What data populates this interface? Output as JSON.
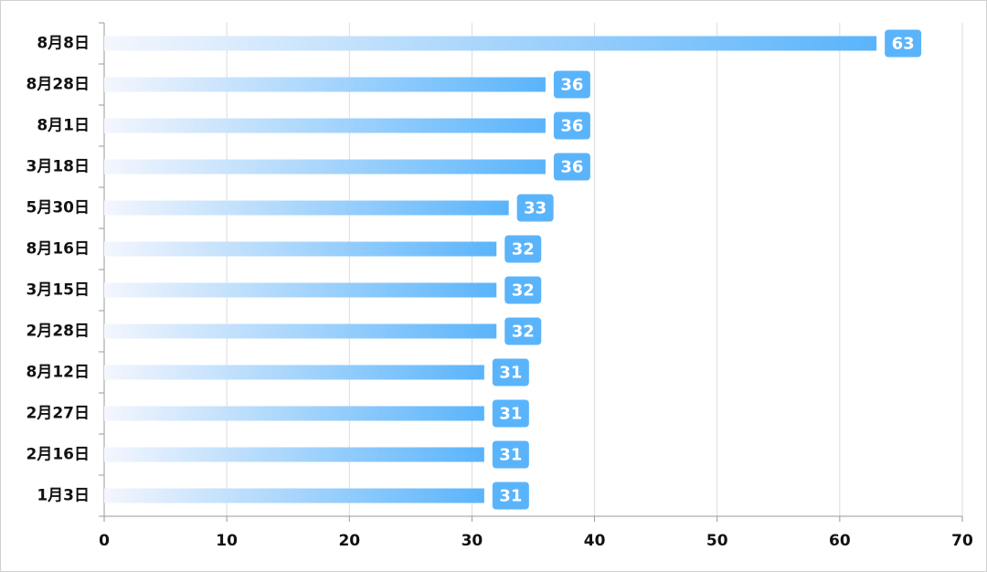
{
  "chart_data": {
    "type": "hbar",
    "categories": [
      "8月8日",
      "8月28日",
      "8月1日",
      "3月18日",
      "5月30日",
      "8月16日",
      "3月15日",
      "2月28日",
      "8月12日",
      "2月27日",
      "2月16日",
      "1月3日"
    ],
    "values": [
      63,
      36,
      36,
      36,
      33,
      32,
      32,
      32,
      31,
      31,
      31,
      31
    ],
    "color": "#5ab4fb",
    "xlim": [
      0,
      70
    ],
    "xticks": [
      0,
      10,
      20,
      30,
      40,
      50,
      60,
      70
    ],
    "grid": true
  }
}
